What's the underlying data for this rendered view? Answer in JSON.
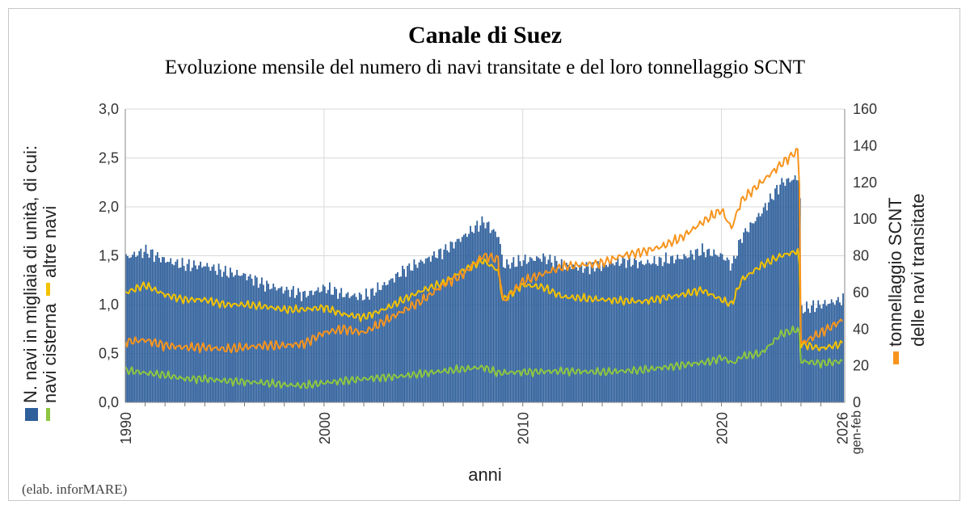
{
  "chart_data": {
    "type": "bar",
    "title": "Canale di Suez",
    "subtitle": "Evoluzione mensile del numero di navi transitate e del loro tonnellaggio SCNT",
    "xlabel": "anni",
    "x_tick_labels": [
      "1990",
      "2000",
      "2010",
      "2020",
      "2026"
    ],
    "x_end_label": "gen-feb",
    "ylabel_left": {
      "series_bar": "N. navi in migliaia di unità, di cui:",
      "series_green": "navi cisterna",
      "series_yellow": "altre navi"
    },
    "ylabel_right": {
      "line1": "tonnellaggio SCNT",
      "line2": "delle navi transitate"
    },
    "ylim_left": [
      0,
      3.0
    ],
    "yticks_left": [
      "0,0",
      "0,5",
      "1,0",
      "1,5",
      "2,0",
      "2,5",
      "3,0"
    ],
    "ylim_right": [
      0,
      160
    ],
    "yticks_right": [
      "0",
      "20",
      "40",
      "60",
      "80",
      "100",
      "120",
      "140",
      "160"
    ],
    "grid": true,
    "x_range_years": [
      1990,
      2026.2
    ],
    "series": [
      {
        "name": "N. navi in migliaia di unità",
        "type": "bar",
        "axis": "left",
        "color": "#2e5f9b",
        "x": [
          1990,
          1991,
          1992,
          1993,
          1994,
          1995,
          1996,
          1997,
          1998,
          1999,
          2000,
          2001,
          2002,
          2003,
          2004,
          2005,
          2006,
          2007,
          2008,
          2008.75,
          2009,
          2010,
          2011,
          2012,
          2013,
          2014,
          2015,
          2016,
          2017,
          2018,
          2019,
          2020,
          2020.5,
          2021,
          2022,
          2023,
          2023.9,
          2024,
          2025,
          2026.1
        ],
        "values": [
          1.48,
          1.55,
          1.45,
          1.4,
          1.4,
          1.33,
          1.3,
          1.2,
          1.15,
          1.1,
          1.17,
          1.1,
          1.08,
          1.2,
          1.35,
          1.45,
          1.55,
          1.7,
          1.85,
          1.7,
          1.4,
          1.45,
          1.48,
          1.4,
          1.38,
          1.4,
          1.45,
          1.42,
          1.45,
          1.48,
          1.55,
          1.5,
          1.4,
          1.7,
          1.95,
          2.25,
          2.3,
          0.95,
          1.0,
          1.05
        ]
      },
      {
        "name": "navi cisterna",
        "type": "line",
        "axis": "left",
        "color": "#8dc63f",
        "x": [
          1990,
          1991,
          1992,
          1993,
          1994,
          1995,
          1996,
          1997,
          1998,
          1999,
          2000,
          2002,
          2004,
          2006,
          2008,
          2008.75,
          2010,
          2012,
          2014,
          2016,
          2018,
          2019.5,
          2020,
          2020.6,
          2021,
          2022,
          2023,
          2023.9,
          2024,
          2025,
          2026.1
        ],
        "values": [
          0.33,
          0.3,
          0.28,
          0.24,
          0.24,
          0.22,
          0.21,
          0.2,
          0.18,
          0.17,
          0.2,
          0.24,
          0.27,
          0.32,
          0.36,
          0.3,
          0.31,
          0.32,
          0.31,
          0.33,
          0.38,
          0.42,
          0.46,
          0.4,
          0.47,
          0.5,
          0.7,
          0.75,
          0.42,
          0.4,
          0.42
        ]
      },
      {
        "name": "altre navi",
        "type": "line",
        "axis": "left",
        "color": "#f2c200",
        "x": [
          1990,
          1991,
          1992,
          1993,
          1994,
          1995,
          1996,
          1997,
          1998,
          1999,
          2000,
          2001,
          2002,
          2003,
          2004,
          2005,
          2006,
          2007,
          2008,
          2008.75,
          2009,
          2010,
          2011,
          2012,
          2014,
          2016,
          2018,
          2019,
          2020,
          2020.5,
          2021,
          2022,
          2023,
          2023.9,
          2024,
          2025,
          2026.1
        ],
        "values": [
          1.12,
          1.2,
          1.1,
          1.05,
          1.05,
          1.0,
          1.0,
          0.98,
          0.95,
          0.95,
          0.97,
          0.9,
          0.87,
          0.95,
          1.05,
          1.15,
          1.22,
          1.35,
          1.45,
          1.35,
          1.05,
          1.2,
          1.18,
          1.08,
          1.05,
          1.03,
          1.1,
          1.15,
          1.05,
          1.0,
          1.25,
          1.4,
          1.5,
          1.55,
          0.6,
          0.55,
          0.6
        ]
      },
      {
        "name": "tonnellaggio SCNT delle navi transitate",
        "type": "line",
        "axis": "right",
        "color": "#f7941d",
        "x": [
          1990,
          1991,
          1992,
          1993,
          1994,
          1995,
          1996,
          1997,
          1998,
          1999,
          2000,
          2001,
          2002,
          2003,
          2004,
          2005,
          2006,
          2007,
          2008,
          2008.75,
          2009,
          2010,
          2011,
          2012,
          2013,
          2014,
          2015,
          2016,
          2017,
          2018,
          2019,
          2020,
          2020.5,
          2021,
          2022,
          2023,
          2023.9,
          2024,
          2025,
          2026.1
        ],
        "values": [
          33,
          34,
          31,
          30,
          30,
          29,
          30,
          31,
          31,
          32,
          38,
          40,
          38,
          44,
          50,
          56,
          64,
          70,
          80,
          78,
          55,
          66,
          70,
          74,
          75,
          76,
          80,
          82,
          85,
          90,
          98,
          105,
          95,
          110,
          120,
          130,
          138,
          32,
          38,
          45
        ]
      }
    ]
  },
  "credit": "(elab. inforMARE)"
}
